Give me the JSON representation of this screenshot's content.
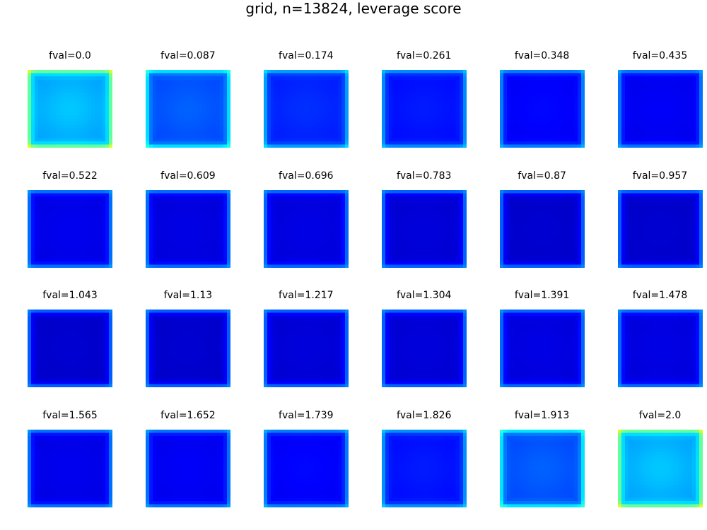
{
  "title": "grid, n=13824, leverage score",
  "chart_data": {
    "type": "heatmap",
    "title": "grid, n=13824, leverage score",
    "colormap": "jet",
    "grid_resolution": 24,
    "panels": [
      {
        "label": "fval=0.0",
        "fval": 0.0,
        "center": 0.32,
        "edge": 0.62,
        "corner": 1.0
      },
      {
        "label": "fval=0.087",
        "fval": 0.087,
        "center": 0.22,
        "edge": 0.46,
        "corner": 0.7
      },
      {
        "label": "fval=0.174",
        "fval": 0.174,
        "center": 0.17,
        "edge": 0.38,
        "corner": 0.58
      },
      {
        "label": "fval=0.261",
        "fval": 0.261,
        "center": 0.15,
        "edge": 0.36,
        "corner": 0.52
      },
      {
        "label": "fval=0.348",
        "fval": 0.348,
        "center": 0.13,
        "edge": 0.35,
        "corner": 0.5
      },
      {
        "label": "fval=0.435",
        "fval": 0.435,
        "center": 0.12,
        "edge": 0.34,
        "corner": 0.48
      },
      {
        "label": "fval=0.522",
        "fval": 0.522,
        "center": 0.11,
        "edge": 0.34,
        "corner": 0.47
      },
      {
        "label": "fval=0.609",
        "fval": 0.609,
        "center": 0.1,
        "edge": 0.34,
        "corner": 0.46
      },
      {
        "label": "fval=0.696",
        "fval": 0.696,
        "center": 0.1,
        "edge": 0.33,
        "corner": 0.46
      },
      {
        "label": "fval=0.783",
        "fval": 0.783,
        "center": 0.09,
        "edge": 0.33,
        "corner": 0.45
      },
      {
        "label": "fval=0.87",
        "fval": 0.87,
        "center": 0.08,
        "edge": 0.33,
        "corner": 0.45
      },
      {
        "label": "fval=0.957",
        "fval": 0.957,
        "center": 0.08,
        "edge": 0.33,
        "corner": 0.45
      },
      {
        "label": "fval=1.043",
        "fval": 1.043,
        "center": 0.08,
        "edge": 0.33,
        "corner": 0.45
      },
      {
        "label": "fval=1.13",
        "fval": 1.13,
        "center": 0.08,
        "edge": 0.33,
        "corner": 0.45
      },
      {
        "label": "fval=1.217",
        "fval": 1.217,
        "center": 0.09,
        "edge": 0.33,
        "corner": 0.45
      },
      {
        "label": "fval=1.304",
        "fval": 1.304,
        "center": 0.09,
        "edge": 0.33,
        "corner": 0.45
      },
      {
        "label": "fval=1.391",
        "fval": 1.391,
        "center": 0.1,
        "edge": 0.33,
        "corner": 0.46
      },
      {
        "label": "fval=1.478",
        "fval": 1.478,
        "center": 0.1,
        "edge": 0.34,
        "corner": 0.46
      },
      {
        "label": "fval=1.565",
        "fval": 1.565,
        "center": 0.11,
        "edge": 0.34,
        "corner": 0.47
      },
      {
        "label": "fval=1.652",
        "fval": 1.652,
        "center": 0.12,
        "edge": 0.34,
        "corner": 0.48
      },
      {
        "label": "fval=1.739",
        "fval": 1.739,
        "center": 0.13,
        "edge": 0.35,
        "corner": 0.5
      },
      {
        "label": "fval=1.826",
        "fval": 1.826,
        "center": 0.15,
        "edge": 0.37,
        "corner": 0.54
      },
      {
        "label": "fval=1.913",
        "fval": 1.913,
        "center": 0.22,
        "edge": 0.47,
        "corner": 0.72
      },
      {
        "label": "fval=2.0",
        "fval": 2.0,
        "center": 0.32,
        "edge": 0.62,
        "corner": 1.0
      }
    ]
  }
}
